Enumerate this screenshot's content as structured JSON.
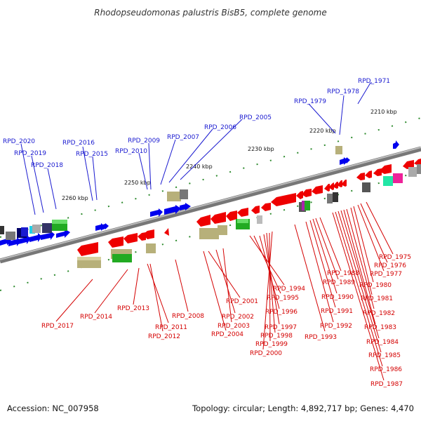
{
  "title": "Rhodopseudomonas palustris BisB5, complete genome",
  "footer": {
    "accession": "Accession: NC_007958",
    "stats": "Topology: circular; Length: 4,892,717 bp; Genes: 4,470"
  },
  "ticks": [
    "2210 kbp",
    "2220 kbp",
    "2230 kbp",
    "2240 kbp",
    "2250 kbp",
    "2260 kbp"
  ],
  "labels_top": [
    "RPD_1971",
    "RPD_1978",
    "RPD_1979",
    "RPD_2005",
    "RPD_2006",
    "RPD_2007",
    "RPD_2009",
    "RPD_2010",
    "RPD_2016",
    "RPD_2015",
    "RPD_2020",
    "RPD_2019",
    "RPD_2018"
  ],
  "labels_bottom": [
    "RPD_2017",
    "RPD_2014",
    "RPD_2013",
    "RPD_2011",
    "RPD_2012",
    "RPD_2008",
    "RPD_2001",
    "RPD_2002",
    "RPD_2003",
    "RPD_2004",
    "RPD_1994",
    "RPD_1995",
    "RPD_1996",
    "RPD_1997",
    "RPD_1998",
    "RPD_1999",
    "RPD_2000",
    "RPD_1993",
    "RPD_1992",
    "RPD_1991",
    "RPD_1990",
    "RPD_1989",
    "RPD_1988",
    "RPD_1975",
    "RPD_1976",
    "RPD_1977",
    "RPD_1980",
    "RPD_1981",
    "RPD_1982",
    "RPD_1983",
    "RPD_1984",
    "RPD_1985",
    "RPD_1986",
    "RPD_1987"
  ],
  "colors": {
    "backbone": "#888888",
    "forward_gene": "#0000ee",
    "reverse_gene": "#ee0000",
    "rna_gene": "#b7b07a",
    "label_blue": "#1a1ad0",
    "label_red": "#d40000",
    "tick_green": "#2e8b2e"
  }
}
